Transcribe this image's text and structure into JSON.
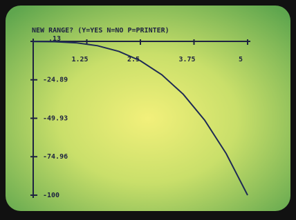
{
  "chart_data": {
    "type": "line",
    "title": "NEW RANGE? (Y=YES N=NO P=PRINTER)",
    "x": [
      0,
      0.5,
      1,
      1.5,
      2,
      2.5,
      3,
      3.5,
      4,
      4.5,
      5
    ],
    "values": [
      0,
      -0.1,
      -0.8,
      -2.7,
      -6.4,
      -12.5,
      -21.6,
      -34.3,
      -51.2,
      -72.9,
      -100
    ],
    "color": "#1e2a55",
    "xlim": [
      0,
      5
    ],
    "xticks": [
      1.25,
      2.5,
      3.75,
      5
    ],
    "ylim": [
      -100,
      0.13
    ],
    "yticks": [
      {
        "value": 0.13,
        "label": ".13"
      },
      -24.89,
      -49.93,
      -74.96,
      -100
    ]
  }
}
